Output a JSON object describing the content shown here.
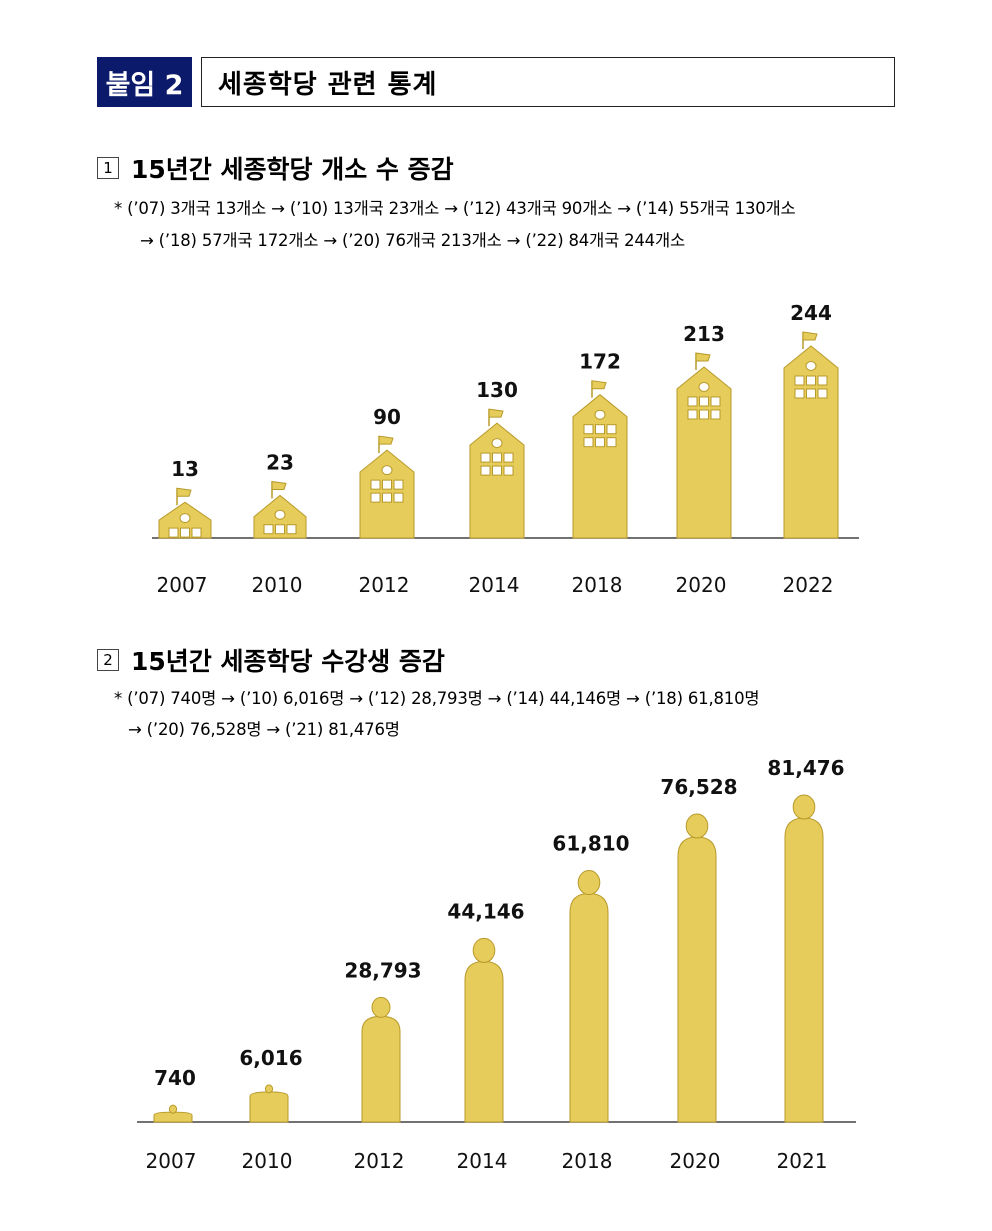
{
  "header": {
    "badge": "붙임 2",
    "title": "세종학당 관련 통계"
  },
  "section1": {
    "number": "1",
    "title": "15년간 세종학당 개소 수 증감",
    "note_line1": "* (’07) 3개국 13개소 → (’10) 13개국 23개소 → (’12) 43개국 90개소 → (’14) 55개국 130개소",
    "note_line2": "→ (’18) 57개국 172개소 → (’20) 76개국 213개소 → (’22) 84개국 244개소"
  },
  "section2": {
    "number": "2",
    "title": "15년간 세종학당 수강생 증감",
    "note_line1": "* (’07) 740명 → (’10) 6,016명 → (’12) 28,793명 → (’14) 44,146명 → (’18) 61,810명",
    "note_line2": "→ (’20) 76,528명 → (’21) 81,476명"
  },
  "colors": {
    "bar": "#e6cc5a",
    "bar_stroke": "#b89a2a",
    "badge": "#0b1a6b"
  },
  "chart_data": [
    {
      "type": "bar",
      "title": "15년간 세종학당 개소 수 증감",
      "categories": [
        "2007",
        "2010",
        "2012",
        "2014",
        "2018",
        "2020",
        "2022"
      ],
      "values": [
        13,
        23,
        90,
        130,
        172,
        213,
        244
      ],
      "value_labels": [
        "13",
        "23",
        "90",
        "130",
        "172",
        "213",
        "244"
      ],
      "ylim": [
        0,
        244
      ],
      "grid": false,
      "mark": "building-icon"
    },
    {
      "type": "bar",
      "title": "15년간 세종학당 수강생 증감",
      "categories": [
        "2007",
        "2010",
        "2012",
        "2014",
        "2018",
        "2020",
        "2021"
      ],
      "values": [
        740,
        6016,
        28793,
        44146,
        61810,
        76528,
        81476
      ],
      "value_labels": [
        "740",
        "6,016",
        "28,793",
        "44,146",
        "61,810",
        "76,528",
        "81,476"
      ],
      "ylim": [
        0,
        81476
      ],
      "grid": false,
      "mark": "person-icon"
    }
  ]
}
